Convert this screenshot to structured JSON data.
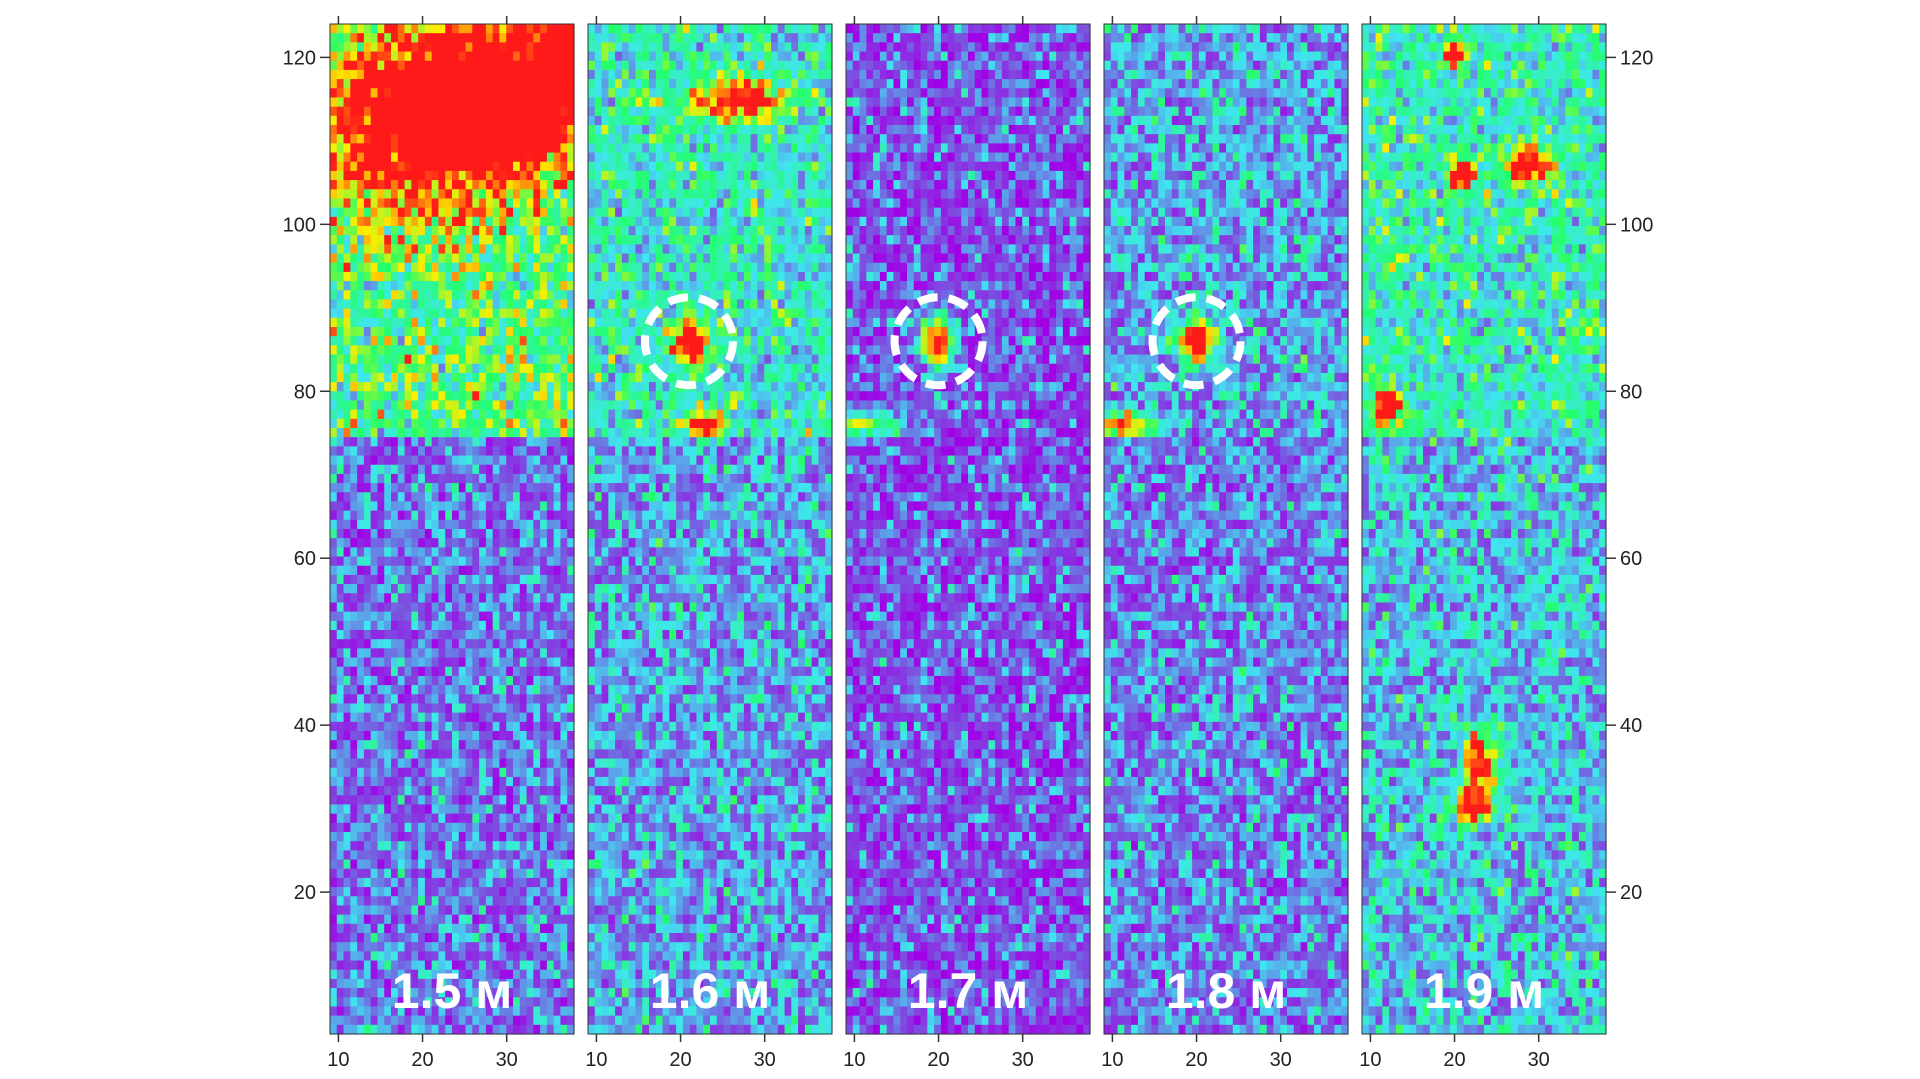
{
  "chart_data": {
    "type": "heatmap",
    "description_panels": "five slices of a subsurface radar survey",
    "panels": [
      {
        "label": "1.5 м",
        "highlight": null
      },
      {
        "label": "1.6 м",
        "highlight": {
          "x": 21,
          "y": 86
        }
      },
      {
        "label": "1.7 м",
        "highlight": {
          "x": 20,
          "y": 86
        }
      },
      {
        "label": "1.8 м",
        "highlight": {
          "x": 20,
          "y": 86
        }
      },
      {
        "label": "1.9 м",
        "highlight": null
      }
    ],
    "x_ticks": [
      10,
      20,
      30
    ],
    "y_ticks": [
      20,
      40,
      60,
      80,
      100,
      120
    ],
    "xlim": [
      9,
      38
    ],
    "ylim": [
      3,
      124
    ],
    "colorscale": [
      "#a100e6",
      "#7a55e0",
      "#3fe6f0",
      "#23ff6a",
      "#ffee00",
      "#ff1a1a"
    ],
    "features": [
      {
        "panel": 0,
        "x": 30,
        "y": 115,
        "intensity": 0.8,
        "sx": 8,
        "sy": 5
      },
      {
        "panel": 0,
        "x": 20,
        "y": 112,
        "intensity": 0.55,
        "sx": 10,
        "sy": 8
      },
      {
        "panel": 0,
        "x": 37,
        "y": 122,
        "intensity": 0.9,
        "sx": 2,
        "sy": 2
      },
      {
        "panel": 1,
        "x": 21,
        "y": 86,
        "intensity": 0.8,
        "sx": 1.5,
        "sy": 2
      },
      {
        "panel": 1,
        "x": 23,
        "y": 76,
        "intensity": 0.85,
        "sx": 1.5,
        "sy": 1
      },
      {
        "panel": 1,
        "x": 27,
        "y": 115,
        "intensity": 0.65,
        "sx": 4,
        "sy": 2
      },
      {
        "panel": 2,
        "x": 20,
        "y": 86,
        "intensity": 0.95,
        "sx": 1.5,
        "sy": 2
      },
      {
        "panel": 2,
        "x": 11,
        "y": 76,
        "intensity": 0.55,
        "sx": 3,
        "sy": 1
      },
      {
        "panel": 3,
        "x": 20,
        "y": 86,
        "intensity": 0.95,
        "sx": 1.5,
        "sy": 2
      },
      {
        "panel": 3,
        "x": 11,
        "y": 76,
        "intensity": 0.8,
        "sx": 2.5,
        "sy": 1
      },
      {
        "panel": 4,
        "x": 21,
        "y": 106,
        "intensity": 0.8,
        "sx": 1,
        "sy": 1.5
      },
      {
        "panel": 4,
        "x": 29,
        "y": 107,
        "intensity": 0.75,
        "sx": 2,
        "sy": 1.5
      },
      {
        "panel": 4,
        "x": 20,
        "y": 120,
        "intensity": 0.75,
        "sx": 1,
        "sy": 1
      },
      {
        "panel": 4,
        "x": 12,
        "y": 78,
        "intensity": 0.8,
        "sx": 1,
        "sy": 1.5
      },
      {
        "panel": 4,
        "x": 23,
        "y": 35,
        "intensity": 0.7,
        "sx": 1.5,
        "sy": 3
      },
      {
        "panel": 4,
        "x": 22,
        "y": 30,
        "intensity": 0.6,
        "sx": 2,
        "sy": 1
      }
    ],
    "base_level": [
      0.18,
      0.25,
      0.12,
      0.2,
      0.3
    ],
    "top_level_boost": [
      0.35,
      0.15,
      0.0,
      0.05,
      0.12
    ]
  }
}
